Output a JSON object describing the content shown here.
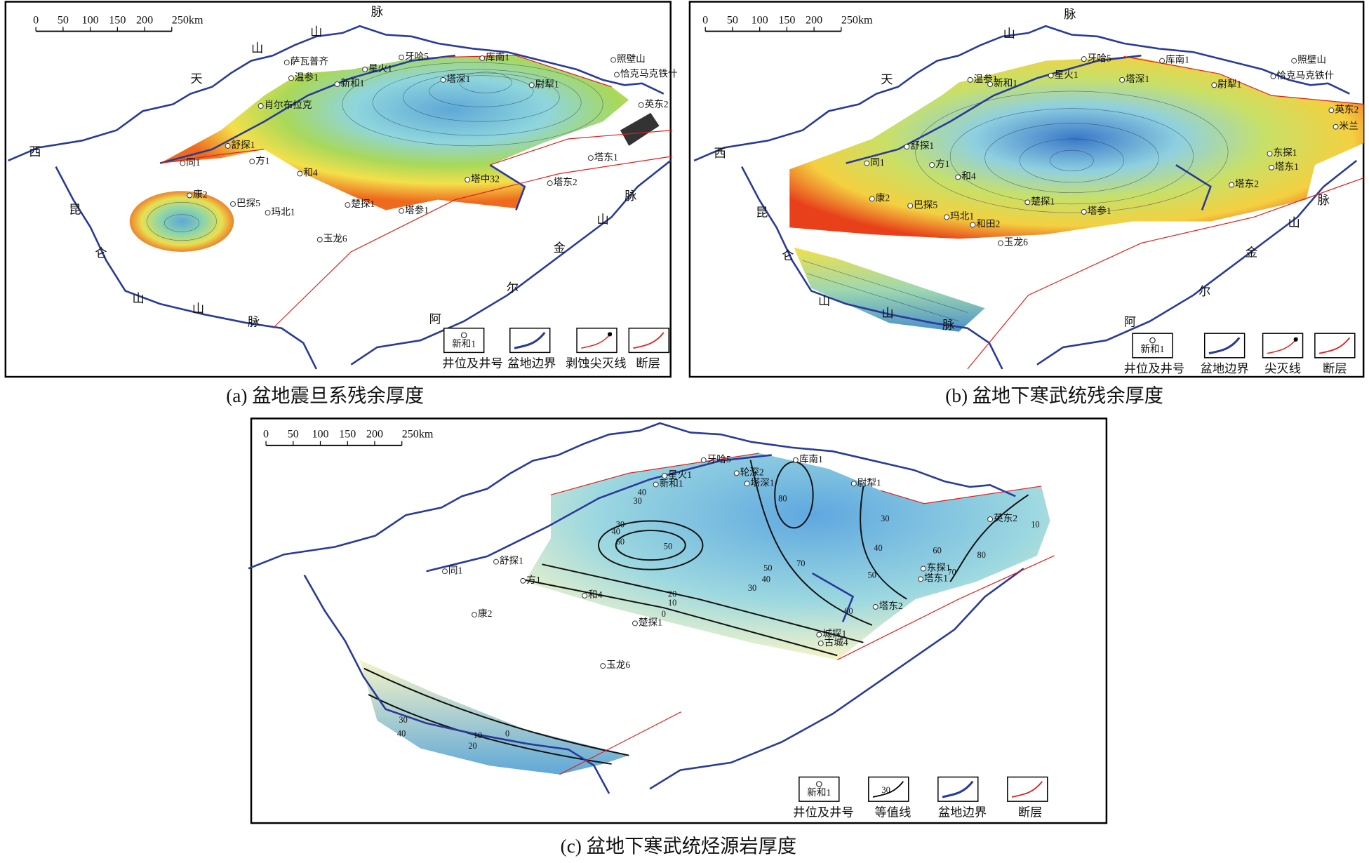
{
  "panels": [
    {
      "caption": "(a) 盆地震旦系残余厚度",
      "scale_bar": [
        "0",
        "50",
        "100",
        "150",
        "200",
        "250km"
      ],
      "geo_labels": [
        "脉",
        "山",
        "山",
        "天",
        "西",
        "昆",
        "仑",
        "山",
        "山",
        "脉",
        "阿",
        "尔",
        "金",
        "山",
        "脉"
      ],
      "wells": [
        "萨瓦普齐",
        "温参1",
        "新和1",
        "星火1",
        "牙哈5",
        "库南1",
        "塔深1",
        "尉犁1",
        "照壁山",
        "恰克马克铁什",
        "肖尔布拉克",
        "英东2",
        "舒探1",
        "同1",
        "方1",
        "和4",
        "塔东1",
        "塔东2",
        "塔中32",
        "楚探1",
        "塔参1",
        "康2",
        "巴探5",
        "玛北1",
        "玉龙6"
      ],
      "legend": {
        "sample": "新和1",
        "items": [
          "井位及井号",
          "盆地边界",
          "剥蚀尖灭线",
          "断层"
        ]
      }
    },
    {
      "caption": "(b) 盆地下寒武统残余厚度",
      "scale_bar": [
        "0",
        "50",
        "100",
        "150",
        "200",
        "250km"
      ],
      "geo_labels": [
        "脉",
        "山",
        "天",
        "西",
        "昆",
        "仑",
        "山",
        "山",
        "脉",
        "阿",
        "尔",
        "金",
        "山",
        "脉"
      ],
      "wells": [
        "温参1",
        "新和1",
        "星火1",
        "牙哈5",
        "塔深1",
        "库南1",
        "尉犁1",
        "照壁山",
        "恰克马克铁什",
        "英东2",
        "米兰",
        "舒探1",
        "同1",
        "方1",
        "和4",
        "东探1",
        "塔东1",
        "塔东2",
        "康2",
        "巴探5",
        "玛北1",
        "楚探1",
        "和田2",
        "塔参1",
        "玉龙6"
      ],
      "legend": {
        "sample": "新和1",
        "items": [
          "井位及井号",
          "盆地边界",
          "尖灭线",
          "断层"
        ]
      }
    },
    {
      "caption": "(c) 盆地下寒武统烃源岩厚度",
      "scale_bar": [
        "0",
        "50",
        "100",
        "150",
        "200",
        "250km"
      ],
      "wells": [
        "牙哈5",
        "库南1",
        "星火1",
        "新和1",
        "轮深2",
        "塔深1",
        "尉犁1",
        "英东2",
        "东探1",
        "塔东1",
        "塔东2",
        "城探1",
        "古城4",
        "舒探1",
        "同1",
        "方1",
        "和4",
        "康2",
        "楚探1",
        "玉龙6"
      ],
      "contour_labels": [
        30,
        40,
        30,
        40,
        60,
        50,
        80,
        70,
        30,
        40,
        50,
        60,
        40,
        50,
        30,
        20,
        10,
        0,
        60,
        70,
        80,
        10,
        30,
        40,
        10,
        20,
        0
      ],
      "legend": {
        "sample": "新和1",
        "contour_sample": 30,
        "items": [
          "井位及井号",
          "等值线",
          "盆地边界",
          "断层"
        ]
      }
    }
  ]
}
